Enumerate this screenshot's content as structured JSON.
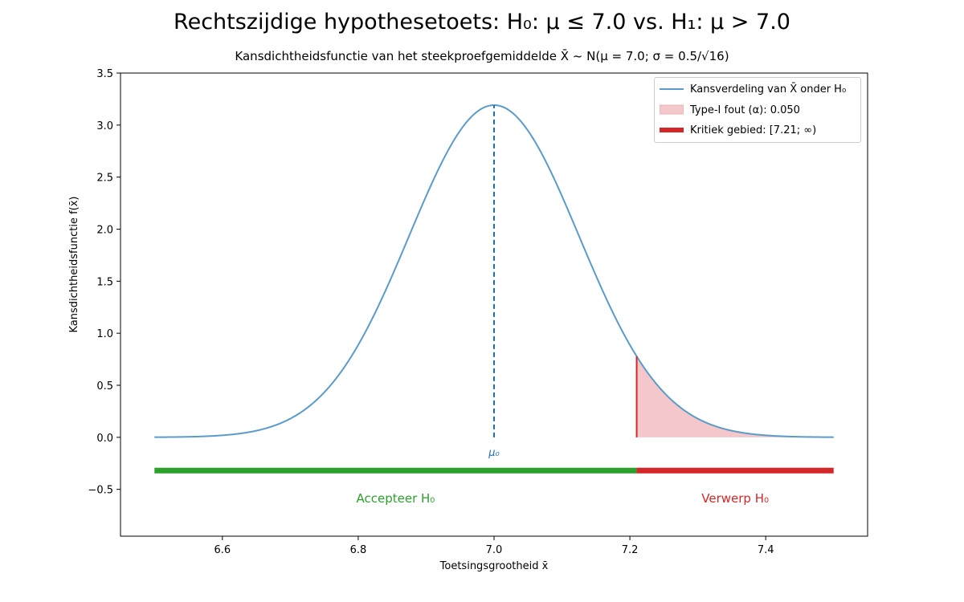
{
  "title": "Rechtszijdige hypothesetoets: H₀: μ ≤ 7.0 vs. H₁: μ > 7.0",
  "subtitle": "Kansdichtheidsfunctie van het steekproefgemiddelde X̄ ~ N(μ = 7.0; σ = 0.5/√16)",
  "legend": {
    "curve": "Kansverdeling van X̄ onder H₀",
    "alpha": "Type-I fout (α): 0.050",
    "critical": "Kritiek gebied: [7.21; ∞)"
  },
  "annotations": {
    "mu0": "μ₀",
    "accept": "Accepteer H₀",
    "reject": "Verwerp H₀"
  },
  "colors": {
    "curve": "#5b9bc9",
    "mu_line": "#1f6fb4",
    "alpha_fill": "#f4c8ca",
    "critical": "#d62728",
    "accept": "#2ca02c"
  },
  "chart_data": {
    "type": "line",
    "title": "Rechtszijdige hypothesetoets: H₀: μ ≤ 7.0 vs. H₁: μ > 7.0",
    "xlabel": "Toetsingsgrootheid x̄",
    "ylabel": "Kansdichtheidsfunctie f(x̄)",
    "xlim": [
      6.45,
      7.55
    ],
    "ylim": [
      -0.95,
      3.5
    ],
    "xticks": [
      6.6,
      6.8,
      7.0,
      7.2,
      7.4
    ],
    "yticks": [
      -0.5,
      0.0,
      0.5,
      1.0,
      1.5,
      2.0,
      2.5,
      3.0,
      3.5
    ],
    "xtick_labels": [
      "6.6",
      "6.8",
      "7.0",
      "7.2",
      "7.4"
    ],
    "ytick_labels": [
      "−0.5",
      "0.0",
      "0.5",
      "1.0",
      "1.5",
      "2.0",
      "2.5",
      "3.0",
      "3.5"
    ],
    "distribution": {
      "mu": 7.0,
      "sigma": 0.125,
      "x_range": [
        6.5,
        7.5
      ]
    },
    "critical_value": 7.21,
    "alpha": 0.05,
    "peak_density": 3.19,
    "decision_bar_y": -0.32,
    "grid": false,
    "legend_position": "top-right"
  }
}
